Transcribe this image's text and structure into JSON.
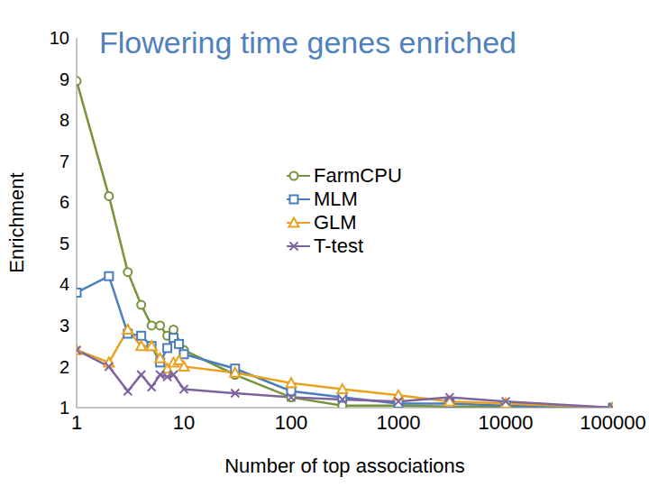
{
  "chart_data": {
    "type": "line",
    "title": "Flowering time genes enriched",
    "x_label": "Number of top associations",
    "y_label": "Enrichment",
    "log": "x",
    "xlim": [
      1,
      100000
    ],
    "xticks": [
      1,
      10,
      100,
      1000,
      10000,
      100000
    ],
    "ylim": [
      1,
      10
    ],
    "yticks": [
      1,
      2,
      3,
      4,
      5,
      6,
      7,
      8,
      9,
      10
    ],
    "grid": false,
    "legend": "right",
    "series": [
      {
        "name": "FarmCPU",
        "color": "#77933c",
        "marker": "circle",
        "x": [
          1,
          2,
          3,
          4,
          5,
          6,
          7,
          8,
          10,
          30,
          100,
          300,
          1000,
          3000,
          10000,
          100000
        ],
        "values": [
          8.95,
          6.15,
          4.3,
          3.5,
          3.0,
          3.0,
          2.75,
          2.9,
          2.4,
          1.8,
          1.25,
          1.05,
          1.05,
          1.03,
          1.02,
          1.0
        ]
      },
      {
        "name": "MLM",
        "color": "#4a7ebb",
        "marker": "square",
        "x": [
          1,
          2,
          3,
          4,
          5,
          6,
          7,
          8,
          9,
          10,
          30,
          100,
          300,
          1000,
          3000,
          10000,
          100000
        ],
        "values": [
          3.8,
          4.2,
          2.8,
          2.75,
          2.5,
          2.1,
          2.45,
          2.7,
          2.55,
          2.3,
          1.95,
          1.4,
          1.25,
          1.1,
          1.1,
          1.05,
          1.0
        ]
      },
      {
        "name": "GLM",
        "color": "#e9a21f",
        "marker": "triangle",
        "x": [
          1,
          2,
          3,
          4,
          5,
          6,
          7,
          8,
          9,
          10,
          30,
          100,
          300,
          1000,
          3000,
          10000,
          100000
        ],
        "values": [
          2.4,
          2.1,
          2.9,
          2.5,
          2.5,
          2.2,
          1.95,
          2.1,
          2.15,
          2.0,
          1.85,
          1.6,
          1.45,
          1.3,
          1.15,
          1.1,
          1.0
        ]
      },
      {
        "name": "T-test",
        "color": "#7e649e",
        "marker": "x",
        "x": [
          1,
          2,
          3,
          4,
          5,
          6,
          7,
          8,
          10,
          30,
          100,
          300,
          1000,
          3000,
          10000,
          100000
        ],
        "values": [
          2.4,
          2.0,
          1.4,
          1.8,
          1.5,
          1.8,
          1.75,
          1.8,
          1.45,
          1.35,
          1.25,
          1.2,
          1.15,
          1.25,
          1.15,
          1.0
        ]
      }
    ]
  }
}
